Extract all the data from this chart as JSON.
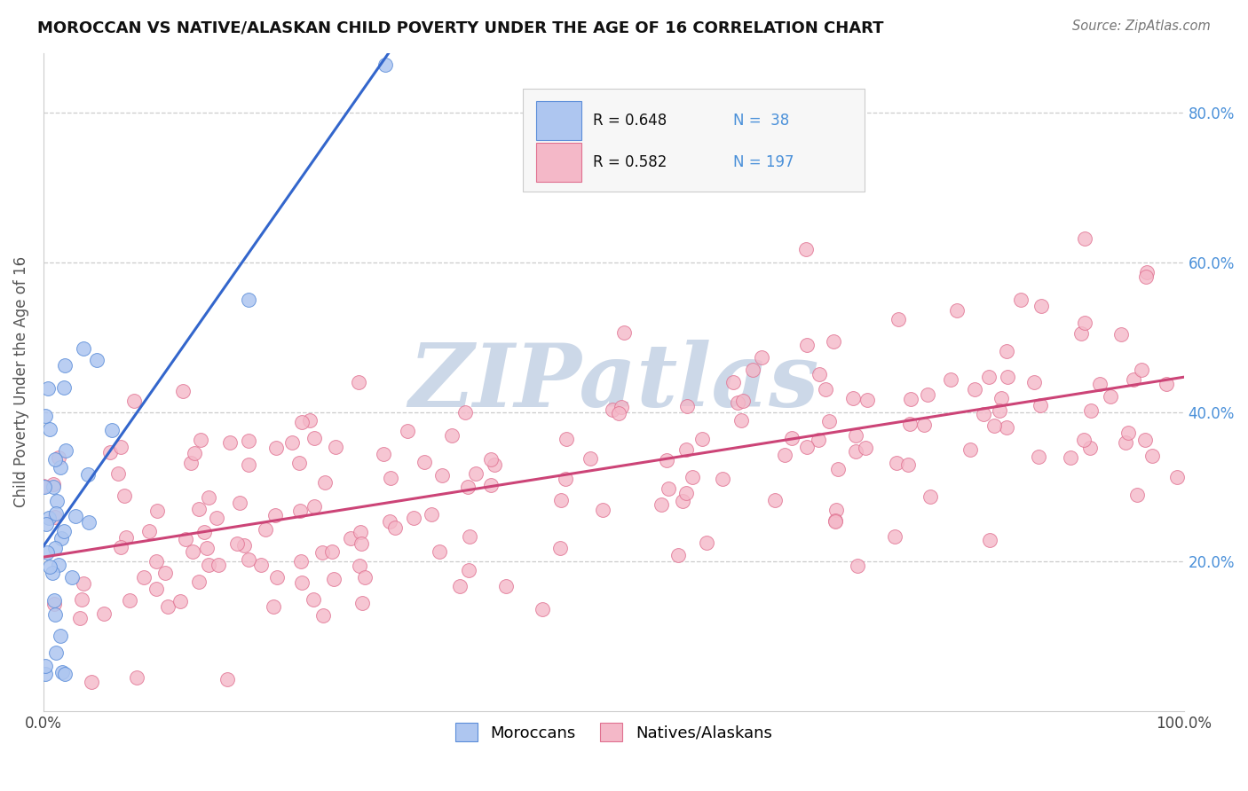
{
  "title": "MOROCCAN VS NATIVE/ALASKAN CHILD POVERTY UNDER THE AGE OF 16 CORRELATION CHART",
  "source": "Source: ZipAtlas.com",
  "ylabel": "Child Poverty Under the Age of 16",
  "moroccan_face": "#aec6f0",
  "moroccan_edge": "#5b8dd9",
  "native_face": "#f4b8c8",
  "native_edge": "#e07090",
  "blue_line_color": "#3366cc",
  "pink_line_color": "#cc4477",
  "watermark": "ZIPatlas",
  "watermark_color": "#ccd8e8",
  "background_color": "#ffffff",
  "grid_color": "#cccccc",
  "R_moroccan": 0.648,
  "N_moroccan": 38,
  "R_native": 0.582,
  "N_native": 197,
  "ytick_vals": [
    0.2,
    0.4,
    0.6,
    0.8
  ],
  "ytick_labels": [
    "20.0%",
    "40.0%",
    "60.0%",
    "80.0%"
  ],
  "ylim": [
    0.0,
    0.88
  ],
  "xlim": [
    0.0,
    1.0
  ]
}
